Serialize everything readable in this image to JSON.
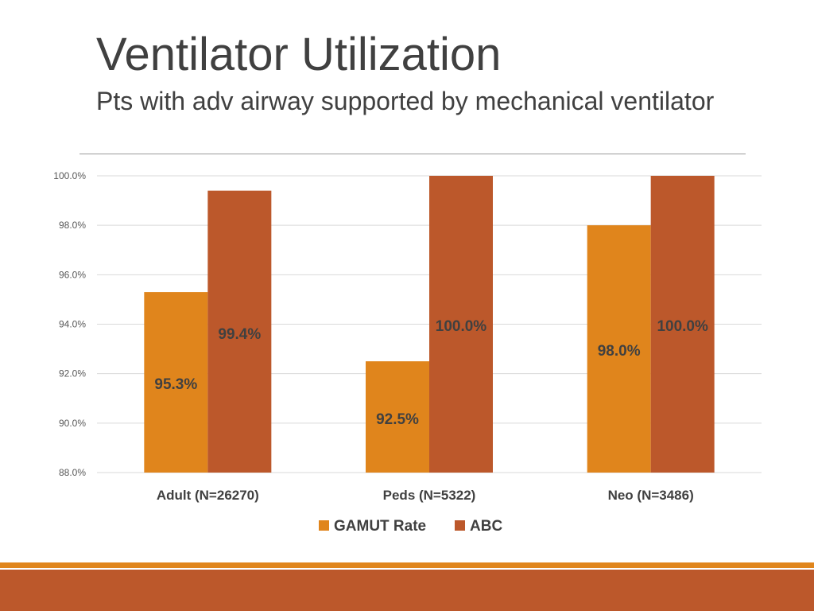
{
  "slide": {
    "title": "Ventilator Utilization",
    "subtitle": "Pts with adv airway supported by mechanical ventilator"
  },
  "colors": {
    "gamut": "#e0851c",
    "abc": "#bc582b",
    "text": "#404040",
    "axis_text": "#595959",
    "gridline": "#d9d9d9"
  },
  "chart_data": {
    "type": "bar",
    "title": "",
    "xlabel": "",
    "ylabel": "",
    "categories": [
      "Adult (N=26270)",
      "Peds (N=5322)",
      "Neo (N=3486)"
    ],
    "series": [
      {
        "name": "GAMUT Rate",
        "values": [
          95.3,
          92.5,
          98.0
        ],
        "labels": [
          "95.3%",
          "92.5%",
          "98.0%"
        ]
      },
      {
        "name": "ABC",
        "values": [
          99.4,
          100.0,
          100.0
        ],
        "labels": [
          "99.4%",
          "100.0%",
          "100.0%"
        ]
      }
    ],
    "ylim": [
      88.0,
      100.0
    ],
    "yticks": [
      88.0,
      90.0,
      92.0,
      94.0,
      96.0,
      98.0,
      100.0
    ],
    "ytick_labels": [
      "88.0%",
      "90.0%",
      "92.0%",
      "94.0%",
      "96.0%",
      "98.0%",
      "100.0%"
    ],
    "grid": true,
    "legend": "bottom"
  }
}
